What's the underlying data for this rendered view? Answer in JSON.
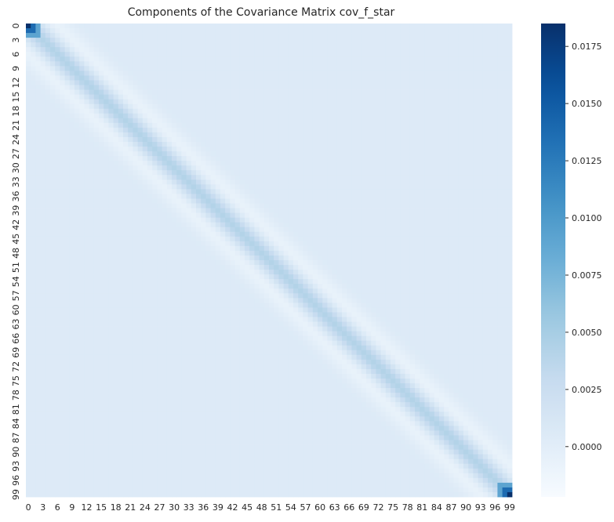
{
  "chart_data": {
    "type": "heatmap",
    "title": "Components of the Covariance Matrix cov_f_star",
    "xlabel": "",
    "ylabel": "",
    "n_rows": 100,
    "n_cols": 100,
    "x_tick_labels": [
      "0",
      "3",
      "6",
      "9",
      "12",
      "15",
      "18",
      "21",
      "24",
      "27",
      "30",
      "33",
      "36",
      "39",
      "42",
      "45",
      "48",
      "51",
      "54",
      "57",
      "60",
      "63",
      "66",
      "69",
      "72",
      "75",
      "78",
      "81",
      "84",
      "87",
      "90",
      "93",
      "96",
      "99"
    ],
    "y_tick_labels": [
      "0",
      "3",
      "6",
      "9",
      "12",
      "15",
      "18",
      "21",
      "24",
      "27",
      "30",
      "33",
      "36",
      "39",
      "42",
      "45",
      "48",
      "51",
      "54",
      "57",
      "60",
      "63",
      "66",
      "69",
      "72",
      "75",
      "78",
      "81",
      "84",
      "87",
      "90",
      "93",
      "96",
      "99"
    ],
    "colorbar": {
      "colormap": "Blues",
      "vmin": -0.0022,
      "vmax": 0.0185,
      "tick_values": [
        0.0,
        0.0025,
        0.005,
        0.0075,
        0.01,
        0.0125,
        0.015,
        0.0175
      ],
      "tick_labels": [
        "0.0000",
        "0.0025",
        "0.0050",
        "0.0075",
        "0.0100",
        "0.0125",
        "0.0150",
        "0.0175"
      ]
    },
    "structure": {
      "diagonal_value": 0.0042,
      "diagonal_width": 2.2,
      "side_lobe_value": -0.0016,
      "side_lobe_offset": 6,
      "background_value": 0.0005,
      "corner_peak_value": 0.0185,
      "corner_peak_size": 3
    },
    "grid": false
  }
}
